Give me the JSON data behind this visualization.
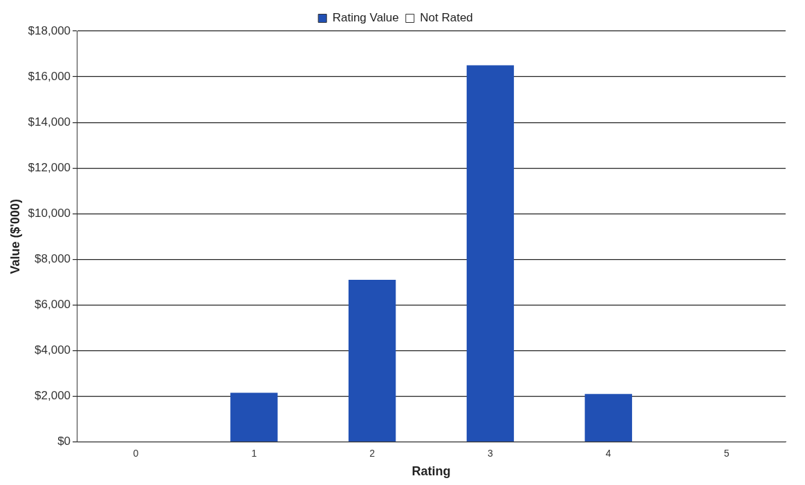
{
  "chart_data": {
    "type": "bar",
    "xlabel": "Rating",
    "ylabel": "Value ($'000)",
    "categories": [
      "0",
      "1",
      "2",
      "3",
      "4",
      "5"
    ],
    "series": [
      {
        "name": "Rating Value",
        "color": "#2150b4",
        "values": [
          null,
          2150,
          7100,
          16500,
          2100,
          null
        ]
      },
      {
        "name": "Not Rated",
        "color": "#ffffff",
        "values": [
          null,
          null,
          null,
          null,
          null,
          null
        ]
      }
    ],
    "ylim": [
      0,
      18000
    ],
    "yticks": [
      {
        "value": 0,
        "label": "$0"
      },
      {
        "value": 2000,
        "label": "$2,000"
      },
      {
        "value": 4000,
        "label": "$4,000"
      },
      {
        "value": 6000,
        "label": "$6,000"
      },
      {
        "value": 8000,
        "label": "$8,000"
      },
      {
        "value": 10000,
        "label": "$10,000"
      },
      {
        "value": 12000,
        "label": "$12,000"
      },
      {
        "value": 14000,
        "label": "$14,000"
      },
      {
        "value": 16000,
        "label": "$16,000"
      },
      {
        "value": 18000,
        "label": "$18,000"
      }
    ],
    "grid": "y",
    "legend": "top"
  }
}
